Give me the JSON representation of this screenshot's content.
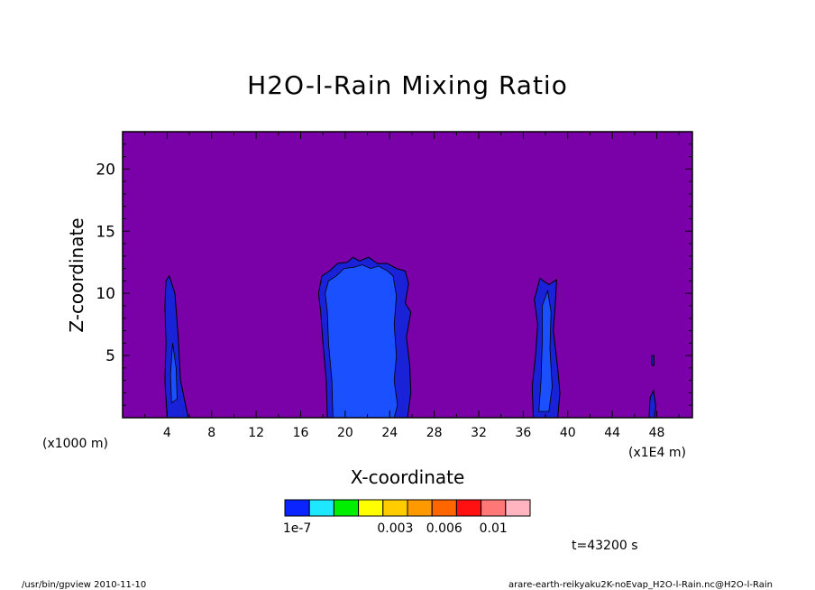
{
  "chart_data": {
    "type": "heatmap",
    "title": "H2O-l-Rain Mixing Ratio",
    "xlabel": "X-coordinate",
    "ylabel": "Z-coordinate",
    "x_unit_left": "(x1000 m)",
    "x_unit_right": "(x1E4 m)",
    "xlim": [
      0,
      51.2
    ],
    "ylim": [
      0,
      23
    ],
    "x_ticks": [
      4,
      8,
      12,
      16,
      20,
      24,
      28,
      32,
      36,
      40,
      44,
      48
    ],
    "x_tick_labels": [
      "4",
      "8",
      "12",
      "16",
      "20",
      "24",
      "28",
      "32",
      "36",
      "40",
      "44",
      "48"
    ],
    "y_ticks": [
      5,
      10,
      15,
      20
    ],
    "y_tick_labels": [
      "5",
      "10",
      "15",
      "20"
    ],
    "background_color": "#7a00a8",
    "levels": [
      {
        "color": "#0a24ff",
        "label": "1e-7"
      },
      {
        "color": "#1ee8ff",
        "label": ""
      },
      {
        "color": "#00ee00",
        "label": ""
      },
      {
        "color": "#ffff00",
        "label": ""
      },
      {
        "color": "#ffcc00",
        "label": "0.003"
      },
      {
        "color": "#ff9900",
        "label": ""
      },
      {
        "color": "#ff6600",
        "label": "0.006"
      },
      {
        "color": "#ff1111",
        "label": ""
      },
      {
        "color": "#ff7777",
        "label": "0.01"
      },
      {
        "color": "#ffb4c0",
        "label": ""
      }
    ],
    "level_colors": {
      "outer": "#1a22d8",
      "inner": "#1b50ff"
    },
    "regions": [
      {
        "name": "cloud-column-1",
        "outer": [
          [
            4.0,
            0
          ],
          [
            3.8,
            3
          ],
          [
            3.9,
            6
          ],
          [
            3.8,
            9
          ],
          [
            3.9,
            11
          ],
          [
            4.2,
            11.4
          ],
          [
            4.7,
            10
          ],
          [
            5.0,
            6.5
          ],
          [
            5.2,
            3
          ],
          [
            5.9,
            0
          ]
        ],
        "inner": [
          [
            4.4,
            1.2
          ],
          [
            4.3,
            3.5
          ],
          [
            4.5,
            6
          ],
          [
            4.8,
            4
          ],
          [
            4.9,
            1.5
          ]
        ]
      },
      {
        "name": "cloud-column-2",
        "outer": [
          [
            18.4,
            0
          ],
          [
            18.3,
            3
          ],
          [
            18.0,
            6
          ],
          [
            17.8,
            8.5
          ],
          [
            17.6,
            10
          ],
          [
            17.9,
            11.4
          ],
          [
            18.6,
            11.8
          ],
          [
            19.3,
            12.4
          ],
          [
            20.2,
            12.5
          ],
          [
            20.7,
            12.9
          ],
          [
            21.3,
            12.6
          ],
          [
            22.1,
            12.9
          ],
          [
            22.9,
            12.4
          ],
          [
            23.8,
            12.4
          ],
          [
            24.6,
            12.0
          ],
          [
            25.4,
            11.8
          ],
          [
            25.7,
            10.8
          ],
          [
            25.4,
            9.2
          ],
          [
            25.9,
            8.5
          ],
          [
            25.5,
            6.5
          ],
          [
            25.8,
            4.2
          ],
          [
            25.9,
            2
          ],
          [
            25.6,
            0
          ]
        ],
        "inner": [
          [
            18.9,
            0
          ],
          [
            18.8,
            3
          ],
          [
            18.5,
            6
          ],
          [
            18.4,
            8.5
          ],
          [
            18.2,
            10
          ],
          [
            18.5,
            11.0
          ],
          [
            19.2,
            11.4
          ],
          [
            19.9,
            12.0
          ],
          [
            20.8,
            12.1
          ],
          [
            21.5,
            12.3
          ],
          [
            22.3,
            12.0
          ],
          [
            23.0,
            12.2
          ],
          [
            23.8,
            11.8
          ],
          [
            24.3,
            11.4
          ],
          [
            24.6,
            9.8
          ],
          [
            24.4,
            7.5
          ],
          [
            24.6,
            5
          ],
          [
            24.4,
            3
          ],
          [
            24.7,
            1
          ],
          [
            24.4,
            0
          ]
        ]
      },
      {
        "name": "cloud-column-3",
        "outer": [
          [
            36.9,
            0
          ],
          [
            36.8,
            2.5
          ],
          [
            37.1,
            5
          ],
          [
            37.3,
            7.5
          ],
          [
            37.0,
            9.5
          ],
          [
            37.5,
            11.2
          ],
          [
            38.3,
            10.7
          ],
          [
            39.0,
            11.1
          ],
          [
            38.9,
            9.5
          ],
          [
            38.7,
            7
          ],
          [
            39.1,
            4
          ],
          [
            39.3,
            2
          ],
          [
            39.1,
            0
          ]
        ],
        "inner": [
          [
            37.4,
            0.5
          ],
          [
            37.6,
            3
          ],
          [
            37.7,
            6
          ],
          [
            37.7,
            9
          ],
          [
            38.2,
            10.2
          ],
          [
            38.5,
            8.5
          ],
          [
            38.4,
            5.5
          ],
          [
            38.6,
            2.5
          ],
          [
            38.3,
            0.5
          ]
        ]
      },
      {
        "name": "cloud-column-4",
        "outer": [
          [
            47.3,
            0
          ],
          [
            47.4,
            1.6
          ],
          [
            47.7,
            2.2
          ],
          [
            47.9,
            1
          ],
          [
            47.8,
            0
          ]
        ],
        "inner": []
      },
      {
        "name": "cloud-column-5",
        "outer": [
          [
            47.55,
            4.2
          ],
          [
            47.55,
            5.0
          ],
          [
            47.75,
            5.0
          ],
          [
            47.75,
            4.2
          ]
        ],
        "inner": []
      }
    ]
  },
  "colorbar_labels": [
    "1e-7",
    "0.003",
    "0.006",
    "0.01"
  ],
  "time_label": "t=43200 s",
  "footer_left": "/usr/bin/gpview   2010-11-10",
  "footer_right": "arare-earth-reikyaku2K-noEvap_H2O-l-Rain.nc@H2O-l-Rain"
}
